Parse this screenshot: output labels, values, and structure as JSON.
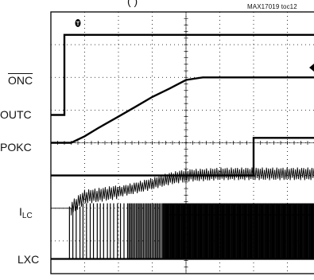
{
  "figure_id": "MAX17019 toc12",
  "title_fragment": "(                 )",
  "trigger_marker": "T",
  "chart_data": {
    "type": "line",
    "title": "",
    "xlabel": "",
    "ylabel": "",
    "grid": true,
    "xdiv": 8,
    "ydiv": 8,
    "x": [
      0,
      0.2,
      0.4,
      0.6,
      1.0,
      1.4,
      2.0,
      2.5,
      3.0,
      3.5,
      4.0,
      4.5,
      5.0,
      6.0,
      7.0,
      8.0
    ],
    "series": [
      {
        "name": "ONC",
        "label": "ONC",
        "overbar": true,
        "values": [
          4.85,
          4.85,
          7.3,
          7.3,
          7.3,
          7.3,
          7.3,
          7.3,
          7.3,
          7.3,
          7.3,
          7.3,
          7.3,
          7.3,
          7.3,
          7.3
        ]
      },
      {
        "name": "OUTC",
        "label": "OUTC",
        "values": [
          4.0,
          4.0,
          4.0,
          4.0,
          4.2,
          4.45,
          4.8,
          5.1,
          5.4,
          5.65,
          5.92,
          6.0,
          6.0,
          6.0,
          6.0,
          6.0
        ]
      },
      {
        "name": "POKC",
        "label": "POKC",
        "values": [
          3.0,
          3.0,
          3.0,
          3.0,
          3.0,
          3.0,
          3.0,
          3.0,
          3.0,
          3.0,
          3.0,
          3.0,
          3.0,
          4.15,
          4.15,
          4.15
        ]
      },
      {
        "name": "ILC",
        "label": "I",
        "label_sub": "LC",
        "values": [
          2.0,
          2.0,
          2.0,
          2.0,
          2.35,
          2.4,
          2.5,
          2.62,
          2.75,
          2.9,
          3.0,
          3.02,
          3.05,
          3.05,
          3.05,
          3.05
        ]
      },
      {
        "name": "LXC",
        "label": "LXC",
        "values": [
          0.45,
          0.45,
          0.45,
          0.45,
          0.45,
          0.45,
          0.45,
          0.45,
          0.45,
          0.45,
          0.45,
          0.45,
          0.45,
          0.45,
          0.45,
          0.45
        ]
      }
    ]
  }
}
